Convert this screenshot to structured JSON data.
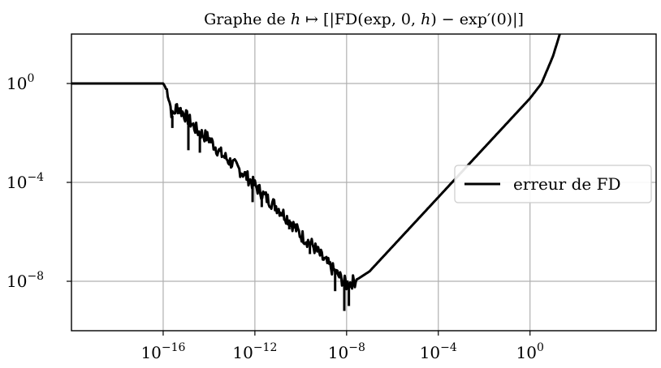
{
  "chart_data": {
    "type": "line",
    "title": "Graphe de h ↦ [|FD(exp, 0, h) − exp′(0)|]",
    "title_parts": {
      "prefix": "Graphe de ",
      "var": "h",
      "arrow": " ↦ [|FD(exp, 0, ",
      "var2": "h",
      "suffix": ") − exp′(0)|]"
    },
    "xlabel": "",
    "ylabel": "",
    "xscale": "log",
    "yscale": "log",
    "xlim_log10": [
      -20,
      5.5
    ],
    "ylim_log10": [
      -10,
      2
    ],
    "x_ticks": [
      {
        "base": "10",
        "exp": "−16",
        "log10": -16
      },
      {
        "base": "10",
        "exp": "−12",
        "log10": -12
      },
      {
        "base": "10",
        "exp": "−8",
        "log10": -8
      },
      {
        "base": "10",
        "exp": "−4",
        "log10": -4
      },
      {
        "base": "10",
        "exp": "0",
        "log10": 0
      }
    ],
    "y_ticks": [
      {
        "base": "10",
        "exp": "0",
        "log10": 0
      },
      {
        "base": "10",
        "exp": "−4",
        "log10": -4
      },
      {
        "base": "10",
        "exp": "−8",
        "log10": -8
      }
    ],
    "grid": true,
    "legend": {
      "position": "center-right",
      "entries": [
        "erreur de FD"
      ]
    },
    "series": [
      {
        "name": "erreur de FD",
        "color": "#000000",
        "points_log10": [
          [
            -20,
            0
          ],
          [
            -16,
            0
          ],
          [
            -15.8,
            -0.3
          ],
          [
            -15.6,
            -1.3
          ],
          [
            -15.4,
            -0.9
          ],
          [
            -15,
            -1.3
          ],
          [
            -14.5,
            -1.9
          ],
          [
            -14,
            -2.2
          ],
          [
            -13.5,
            -2.8
          ],
          [
            -13,
            -3.2
          ],
          [
            -12.5,
            -3.6
          ],
          [
            -12,
            -4.1
          ],
          [
            -11.5,
            -4.6
          ],
          [
            -11,
            -5.0
          ],
          [
            -10.5,
            -5.5
          ],
          [
            -10,
            -6.1
          ],
          [
            -9.5,
            -6.5
          ],
          [
            -9,
            -7.1
          ],
          [
            -8.5,
            -7.6
          ],
          [
            -8,
            -8.1
          ],
          [
            -7.5,
            -7.9
          ],
          [
            -7,
            -7.6
          ],
          [
            -6,
            -6.6
          ],
          [
            -4,
            -4.6
          ],
          [
            -2,
            -2.6
          ],
          [
            -1,
            -1.6
          ],
          [
            0,
            -0.6
          ],
          [
            0.5,
            0
          ],
          [
            1,
            1.1
          ],
          [
            1.3,
            2
          ]
        ],
        "dips_log10": [
          [
            -15.6,
            -1.8
          ],
          [
            -14.9,
            -2.7
          ],
          [
            -14.4,
            -2.8
          ],
          [
            -12.1,
            -4.8
          ],
          [
            -11.7,
            -5.0
          ],
          [
            -10.5,
            -5.9
          ],
          [
            -9.6,
            -6.9
          ],
          [
            -8.1,
            -9.2
          ],
          [
            -7.9,
            -9.0
          ],
          [
            -8.5,
            -8.4
          ]
        ]
      }
    ]
  }
}
